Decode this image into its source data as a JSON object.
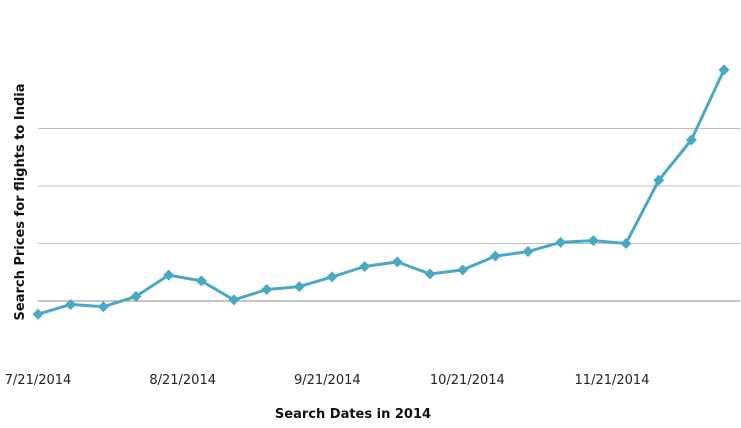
{
  "chart_data": {
    "type": "line",
    "xlabel": "Search Dates in 2014",
    "ylabel": "Search Prices for flights to India",
    "x_tick_labels": [
      "7/21/2014",
      "8/21/2014",
      "9/21/2014",
      "10/21/2014",
      "11/21/2014"
    ],
    "x_tick_dates": [
      "2014-07-21",
      "2014-08-21",
      "2014-09-21",
      "2014-10-21",
      "2014-11-21"
    ],
    "xlim": [
      "2014-07-21",
      "2014-12-15"
    ],
    "y_ticks_labeled": false,
    "ylim": [
      -0.2,
      4.4
    ],
    "grid": "horizontal",
    "series": [
      {
        "color": "#4aa8c4",
        "marker": "diamond",
        "x": [
          "2014-07-21",
          "2014-07-28",
          "2014-08-04",
          "2014-08-11",
          "2014-08-18",
          "2014-08-25",
          "2014-09-01",
          "2014-09-08",
          "2014-09-15",
          "2014-09-22",
          "2014-09-29",
          "2014-10-06",
          "2014-10-13",
          "2014-10-20",
          "2014-10-27",
          "2014-11-03",
          "2014-11-10",
          "2014-11-17",
          "2014-11-24",
          "2014-12-01",
          "2014-12-08",
          "2014-12-15"
        ],
        "y": [
          -0.23,
          -0.06,
          -0.1,
          0.08,
          0.45,
          0.35,
          0.02,
          0.2,
          0.25,
          0.42,
          0.6,
          0.68,
          0.47,
          0.54,
          0.78,
          0.86,
          1.02,
          1.05,
          1.0,
          2.1,
          2.8,
          4.02
        ]
      }
    ]
  }
}
